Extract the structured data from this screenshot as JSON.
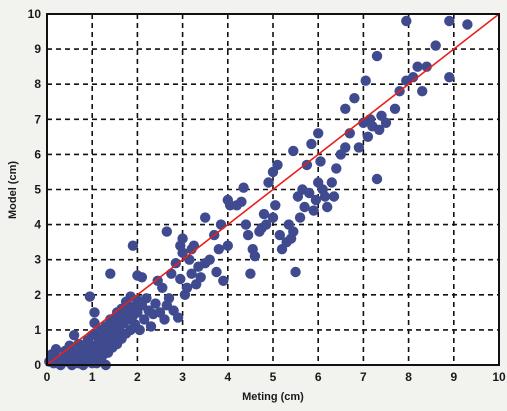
{
  "chart_data": {
    "type": "scatter",
    "title": "",
    "xlabel": "Meting (cm)",
    "ylabel": "Model (cm)",
    "xlim": [
      0,
      10
    ],
    "ylim": [
      0,
      10
    ],
    "xticks": [
      "0",
      "1",
      "2",
      "3",
      "4",
      "5",
      "6",
      "7",
      "8",
      "9",
      "10"
    ],
    "yticks": [
      "0",
      "1",
      "2",
      "3",
      "4",
      "5",
      "6",
      "7",
      "8",
      "9",
      "10"
    ],
    "grid": true,
    "legend": "none",
    "colors": {
      "points": "#3f4a8f",
      "fit_line": "#e8201a",
      "grid": "#111111",
      "plot_bg": "#ffffff"
    },
    "reference_line": {
      "x": [
        0,
        10
      ],
      "y": [
        0,
        10
      ]
    },
    "series": [
      {
        "points": [
          [
            0.05,
            0.1
          ],
          [
            0.1,
            0.3
          ],
          [
            0.15,
            0.05
          ],
          [
            0.2,
            0.45
          ],
          [
            0.25,
            0.2
          ],
          [
            0.3,
            0.0
          ],
          [
            0.35,
            0.15
          ],
          [
            0.4,
            0.4
          ],
          [
            0.45,
            0.1
          ],
          [
            0.5,
            0.55
          ],
          [
            0.5,
            0.25
          ],
          [
            0.55,
            0.0
          ],
          [
            0.6,
            0.85
          ],
          [
            0.6,
            0.35
          ],
          [
            0.65,
            0.15
          ],
          [
            0.7,
            0.6
          ],
          [
            0.7,
            0.05
          ],
          [
            0.75,
            0.3
          ],
          [
            0.8,
            0.45
          ],
          [
            0.8,
            0.0
          ],
          [
            0.85,
            0.2
          ],
          [
            0.9,
            0.7
          ],
          [
            0.9,
            0.35
          ],
          [
            0.95,
            0.1
          ],
          [
            0.95,
            0.5
          ],
          [
            1.0,
            0.85
          ],
          [
            1.0,
            0.3
          ],
          [
            1.0,
            0.05
          ],
          [
            1.05,
            1.2
          ],
          [
            1.05,
            0.55
          ],
          [
            1.1,
            0.2
          ],
          [
            1.1,
            0.9
          ],
          [
            1.1,
            0.05
          ],
          [
            1.15,
            0.4
          ],
          [
            1.15,
            0.7
          ],
          [
            1.2,
            0.15
          ],
          [
            1.2,
            1.0
          ],
          [
            1.2,
            0.55
          ],
          [
            1.25,
            0.3
          ],
          [
            1.25,
            0.8
          ],
          [
            1.3,
            0.0
          ],
          [
            1.3,
            0.6
          ],
          [
            1.3,
            1.1
          ],
          [
            1.35,
            0.35
          ],
          [
            1.35,
            0.9
          ],
          [
            1.4,
            0.7
          ],
          [
            1.4,
            1.3
          ],
          [
            1.45,
            0.5
          ],
          [
            1.45,
            1.0
          ],
          [
            1.5,
            0.8
          ],
          [
            1.5,
            1.2
          ],
          [
            1.55,
            0.6
          ],
          [
            1.55,
            1.5
          ],
          [
            1.6,
            1.0
          ],
          [
            1.6,
            1.35
          ],
          [
            1.65,
            0.75
          ],
          [
            1.65,
            1.6
          ],
          [
            1.7,
            1.2
          ],
          [
            1.7,
            1.45
          ],
          [
            1.75,
            0.9
          ],
          [
            1.75,
            1.8
          ],
          [
            1.8,
            1.3
          ],
          [
            1.8,
            1.55
          ],
          [
            1.85,
            1.0
          ],
          [
            1.85,
            1.95
          ],
          [
            1.9,
            1.4
          ],
          [
            1.9,
            1.65
          ],
          [
            1.95,
            1.15
          ],
          [
            2.0,
            1.5
          ],
          [
            2.0,
            1.85
          ],
          [
            0.95,
            1.95
          ],
          [
            1.05,
            1.5
          ],
          [
            1.4,
            2.6
          ],
          [
            2.05,
            1.0
          ],
          [
            2.1,
            1.7
          ],
          [
            2.15,
            1.3
          ],
          [
            2.2,
            1.9
          ],
          [
            2.25,
            1.55
          ],
          [
            2.3,
            1.1
          ],
          [
            2.35,
            1.45
          ],
          [
            2.4,
            1.75
          ],
          [
            2.45,
            2.4
          ],
          [
            2.5,
            1.5
          ],
          [
            2.55,
            2.2
          ],
          [
            2.6,
            1.3
          ],
          [
            2.65,
            1.7
          ],
          [
            2.7,
            1.9
          ],
          [
            2.75,
            2.6
          ],
          [
            2.8,
            1.55
          ],
          [
            2.85,
            2.9
          ],
          [
            2.9,
            1.35
          ],
          [
            2.95,
            2.45
          ],
          [
            3.0,
            3.2
          ],
          [
            3.05,
            2.0
          ],
          [
            3.1,
            2.2
          ],
          [
            3.15,
            3.0
          ],
          [
            3.2,
            2.6
          ],
          [
            3.25,
            3.4
          ],
          [
            3.3,
            2.3
          ],
          [
            3.35,
            2.8
          ],
          [
            3.4,
            2.5
          ],
          [
            3.5,
            2.9
          ],
          [
            3.6,
            3.0
          ],
          [
            3.7,
            3.7
          ],
          [
            3.75,
            2.65
          ],
          [
            3.8,
            3.3
          ],
          [
            3.9,
            2.4
          ],
          [
            4.0,
            3.4
          ],
          [
            1.9,
            3.4
          ],
          [
            2.1,
            2.5
          ],
          [
            2.0,
            2.55
          ],
          [
            2.65,
            3.8
          ],
          [
            2.95,
            3.4
          ],
          [
            3.0,
            3.6
          ],
          [
            3.2,
            3.3
          ],
          [
            3.85,
            4.0
          ],
          [
            4.05,
            4.55
          ],
          [
            4.2,
            4.55
          ],
          [
            4.3,
            4.65
          ],
          [
            4.35,
            5.05
          ],
          [
            4.4,
            4.0
          ],
          [
            4.45,
            3.7
          ],
          [
            4.5,
            2.6
          ],
          [
            4.55,
            3.3
          ],
          [
            4.6,
            3.1
          ],
          [
            4.7,
            3.8
          ],
          [
            4.75,
            3.9
          ],
          [
            4.8,
            4.3
          ],
          [
            4.85,
            4.0
          ],
          [
            4.9,
            5.2
          ],
          [
            5.0,
            4.2
          ],
          [
            5.05,
            4.55
          ],
          [
            5.1,
            5.7
          ],
          [
            5.15,
            3.7
          ],
          [
            5.2,
            3.3
          ],
          [
            5.3,
            3.5
          ],
          [
            5.35,
            4.0
          ],
          [
            5.4,
            3.6
          ],
          [
            5.45,
            3.8
          ],
          [
            5.5,
            2.65
          ],
          [
            5.55,
            4.8
          ],
          [
            5.6,
            4.2
          ],
          [
            5.65,
            5.0
          ],
          [
            5.7,
            4.5
          ],
          [
            5.75,
            5.7
          ],
          [
            5.8,
            4.9
          ],
          [
            5.85,
            6.3
          ],
          [
            5.9,
            4.4
          ],
          [
            5.95,
            4.7
          ],
          [
            6.0,
            5.2
          ],
          [
            6.05,
            5.8
          ],
          [
            6.1,
            5.0
          ],
          [
            6.15,
            4.8
          ],
          [
            6.2,
            4.5
          ],
          [
            6.3,
            5.2
          ],
          [
            6.35,
            4.8
          ],
          [
            6.4,
            5.6
          ],
          [
            6.5,
            6.0
          ],
          [
            6.6,
            6.2
          ],
          [
            6.7,
            6.6
          ],
          [
            6.8,
            7.6
          ],
          [
            6.9,
            6.2
          ],
          [
            7.0,
            6.9
          ],
          [
            7.05,
            8.1
          ],
          [
            7.1,
            6.5
          ],
          [
            7.15,
            7.0
          ],
          [
            7.2,
            6.8
          ],
          [
            7.3,
            5.3
          ],
          [
            7.35,
            6.7
          ],
          [
            7.4,
            7.1
          ],
          [
            7.5,
            6.9
          ],
          [
            7.7,
            7.3
          ],
          [
            7.8,
            7.8
          ],
          [
            7.95,
            8.1
          ],
          [
            8.1,
            8.2
          ],
          [
            8.2,
            8.5
          ],
          [
            8.3,
            7.8
          ],
          [
            8.4,
            8.5
          ],
          [
            8.6,
            9.1
          ],
          [
            8.9,
            8.2
          ],
          [
            7.3,
            8.8
          ],
          [
            7.95,
            9.8
          ],
          [
            8.9,
            9.8
          ],
          [
            9.3,
            9.7
          ],
          [
            5.0,
            5.5
          ],
          [
            5.45,
            6.1
          ],
          [
            6.0,
            6.6
          ],
          [
            6.6,
            7.3
          ],
          [
            3.5,
            4.2
          ],
          [
            4.0,
            4.7
          ]
        ]
      }
    ]
  }
}
